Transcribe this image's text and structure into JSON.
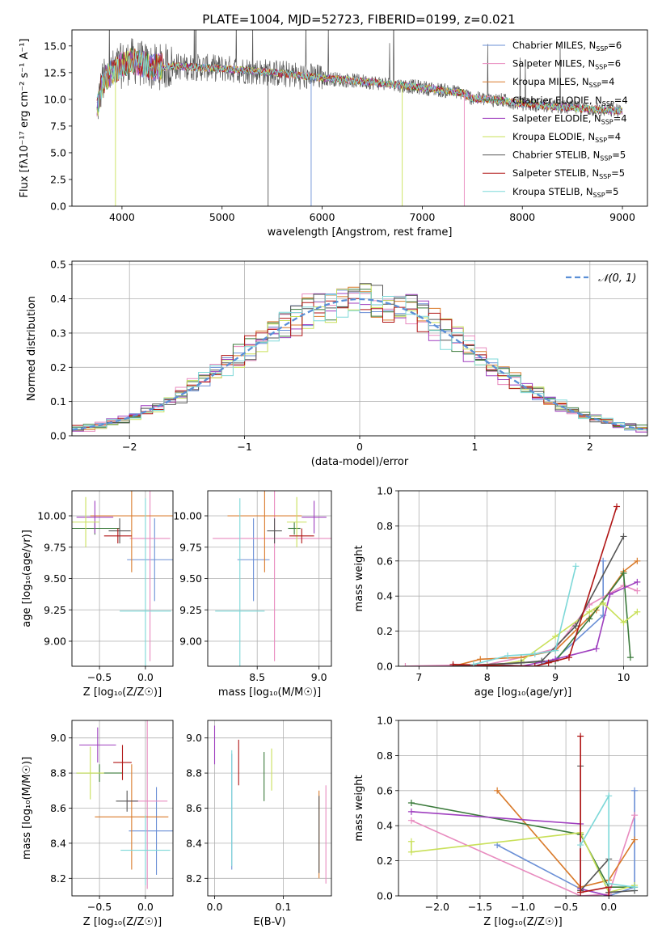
{
  "figure": {
    "title": "PLATE=1004, MJD=52723, FIBERID=0199, z=0.021"
  },
  "colors": {
    "series": [
      "#6a8fd6",
      "#e88bbf",
      "#d97a2a",
      "#3a7a3a",
      "#9f3fbf",
      "#c9e05a",
      "#555555",
      "#b01515",
      "#7dd8d8"
    ]
  },
  "chart_data": [
    {
      "id": "spectrum",
      "type": "line",
      "title": "PLATE=1004, MJD=52723, FIBERID=0199, z=0.021",
      "xlabel": "wavelength [Angstrom, rest frame]",
      "ylabel": "Flux [fλ10⁻¹⁷ erg cm⁻² s⁻¹ A⁻¹]",
      "xlim": [
        3500,
        9250
      ],
      "ylim": [
        0,
        16.5
      ],
      "xticks": [
        4000,
        5000,
        6000,
        7000,
        8000,
        9000
      ],
      "yticks": [
        0.0,
        2.5,
        5.0,
        7.5,
        10.0,
        12.5,
        15.0
      ],
      "grid": false,
      "legend": "top-right",
      "legend_entries": [
        "Chabrier MILES, N_SSP=6",
        "Salpeter MILES, N_SSP=6",
        "Kroupa MILES, N_SSP=4",
        "Chabrier ELODIE, N_SSP=4",
        "Salpeter ELODIE, N_SSP=4",
        "Kroupa ELODIE, N_SSP=4",
        "Chabrier STELIB, N_SSP=5",
        "Salpeter STELIB, N_SSP=5",
        "Kroupa STELIB, N_SSP=5"
      ],
      "continuum": {
        "x": [
          3750,
          3800,
          3900,
          4000,
          4100,
          4300,
          4500,
          5000,
          5500,
          6000,
          6500,
          7000,
          7400,
          7500,
          7800,
          8000,
          8500,
          9000
        ],
        "y": [
          9.0,
          11.5,
          12.5,
          13.2,
          13.6,
          13.0,
          13.1,
          12.9,
          12.5,
          12.0,
          11.6,
          11.1,
          10.6,
          10.1,
          9.9,
          9.6,
          9.2,
          8.9
        ]
      },
      "dips": [
        {
          "x": 3935,
          "y": 0.0
        },
        {
          "x": 5460,
          "y": 0.0
        },
        {
          "x": 5890,
          "y": 0.0
        },
        {
          "x": 6800,
          "y": 0.0
        },
        {
          "x": 7420,
          "y": 0.0
        }
      ]
    },
    {
      "id": "residuals",
      "type": "histogram",
      "xlabel": "(data-model)/error",
      "ylabel": "Normed distribution",
      "xlim": [
        -2.5,
        2.5
      ],
      "ylim": [
        0,
        0.51
      ],
      "xticks": [
        -2,
        -1,
        0,
        1,
        2
      ],
      "yticks": [
        0.0,
        0.1,
        0.2,
        0.3,
        0.4,
        0.5
      ],
      "grid": true,
      "legend": "top-right",
      "reference_label": "𝒩(0, 1)",
      "bin_width": 0.1
    },
    {
      "id": "age_vs_Z",
      "type": "scatter",
      "xlabel": "Z [log₁₀(Z/Z☉)]",
      "ylabel": "age  [log₁₀(age/yr)]",
      "xlim": [
        -0.8,
        0.3
      ],
      "ylim": [
        8.8,
        10.2
      ],
      "xticks": [
        -0.5,
        0.0
      ],
      "yticks": [
        9.0,
        9.25,
        9.5,
        9.75,
        10.0
      ],
      "grid": true,
      "points": [
        {
          "x": 0.1,
          "y": 9.65,
          "xerr": 0.3,
          "yerr": 0.33,
          "color": 0
        },
        {
          "x": 0.05,
          "y": 9.82,
          "xerr": 0.22,
          "yerr": 0.98,
          "color": 1
        },
        {
          "x": -0.15,
          "y": 10.0,
          "xerr": 0.45,
          "yerr": 0.45,
          "color": 2
        },
        {
          "x": -0.55,
          "y": 9.9,
          "xerr": 0.27,
          "yerr": 0.05,
          "color": 3
        },
        {
          "x": -0.55,
          "y": 9.99,
          "xerr": 0.2,
          "yerr": 0.13,
          "color": 4
        },
        {
          "x": -0.65,
          "y": 9.95,
          "xerr": 0.15,
          "yerr": 0.2,
          "color": 5
        },
        {
          "x": -0.28,
          "y": 9.88,
          "xerr": 0.12,
          "yerr": 0.1,
          "color": 6
        },
        {
          "x": -0.3,
          "y": 9.84,
          "xerr": 0.15,
          "yerr": 0.06,
          "color": 7
        },
        {
          "x": 0.0,
          "y": 9.24,
          "xerr": 0.28,
          "yerr": 0.9,
          "color": 8
        }
      ]
    },
    {
      "id": "age_vs_mass",
      "type": "scatter",
      "xlabel": "mass [log₁₀(M/M☉)]",
      "ylabel": "",
      "xlim": [
        8.1,
        9.1
      ],
      "ylim": [
        8.8,
        10.2
      ],
      "xticks": [
        8.5,
        9.0
      ],
      "yticks": [
        9.0,
        9.25,
        9.5,
        9.75,
        10.0
      ],
      "grid": true,
      "points": [
        {
          "x": 8.47,
          "y": 9.65,
          "xerr": 0.13,
          "yerr": 0.33,
          "color": 0
        },
        {
          "x": 8.64,
          "y": 9.82,
          "xerr": 0.5,
          "yerr": 0.98,
          "color": 1
        },
        {
          "x": 8.56,
          "y": 10.0,
          "xerr": 0.3,
          "yerr": 0.45,
          "color": 2
        },
        {
          "x": 8.8,
          "y": 9.9,
          "xerr": 0.05,
          "yerr": 0.05,
          "color": 3
        },
        {
          "x": 8.96,
          "y": 9.99,
          "xerr": 0.1,
          "yerr": 0.13,
          "color": 4
        },
        {
          "x": 8.82,
          "y": 9.95,
          "xerr": 0.08,
          "yerr": 0.2,
          "color": 5
        },
        {
          "x": 8.64,
          "y": 9.88,
          "xerr": 0.06,
          "yerr": 0.1,
          "color": 6
        },
        {
          "x": 8.86,
          "y": 9.84,
          "xerr": 0.1,
          "yerr": 0.06,
          "color": 7
        },
        {
          "x": 8.36,
          "y": 9.24,
          "xerr": 0.2,
          "yerr": 0.9,
          "color": 8
        }
      ]
    },
    {
      "id": "weight_vs_age",
      "type": "line",
      "xlabel": "age  [log₁₀(age/yr)]",
      "ylabel": "mass weight",
      "xlim": [
        6.7,
        10.35
      ],
      "ylim": [
        0,
        1.0
      ],
      "xticks": [
        7,
        8,
        9,
        10
      ],
      "yticks": [
        0.0,
        0.2,
        0.4,
        0.6,
        0.8,
        1.0
      ],
      "grid": true,
      "series": [
        {
          "color": 0,
          "x": [
            7.5,
            8.0,
            8.7,
            9.0,
            9.7,
            9.7
          ],
          "y": [
            0.0,
            0.01,
            0.0,
            0.04,
            0.29,
            0.6
          ]
        },
        {
          "color": 1,
          "x": [
            6.8,
            8.0,
            8.5,
            9.0,
            9.5,
            10.0,
            10.2
          ],
          "y": [
            0.0,
            0.01,
            0.05,
            0.1,
            0.35,
            0.46,
            0.43
          ]
        },
        {
          "color": 2,
          "x": [
            7.5,
            7.9,
            8.5,
            9.0,
            9.6,
            10.0,
            10.2
          ],
          "y": [
            0.0,
            0.04,
            0.05,
            0.09,
            0.32,
            0.54,
            0.6
          ]
        },
        {
          "color": 3,
          "x": [
            7.5,
            8.5,
            9.0,
            9.5,
            10.0,
            10.1
          ],
          "y": [
            0.0,
            0.02,
            0.03,
            0.27,
            0.53,
            0.05
          ]
        },
        {
          "color": 4,
          "x": [
            7.5,
            8.5,
            9.0,
            9.6,
            9.8,
            10.2
          ],
          "y": [
            0.0,
            0.0,
            0.04,
            0.1,
            0.41,
            0.48
          ]
        },
        {
          "color": 5,
          "x": [
            8.0,
            8.5,
            9.0,
            9.5,
            9.7,
            10.0,
            10.2
          ],
          "y": [
            0.0,
            0.03,
            0.17,
            0.31,
            0.36,
            0.25,
            0.31
          ]
        },
        {
          "color": 6,
          "x": [
            7.5,
            8.5,
            8.8,
            9.3,
            10.0
          ],
          "y": [
            0.0,
            0.02,
            0.03,
            0.23,
            0.74
          ]
        },
        {
          "color": 7,
          "x": [
            7.5,
            8.7,
            8.9,
            9.2,
            9.9
          ],
          "y": [
            0.01,
            0.0,
            0.02,
            0.05,
            0.91
          ]
        },
        {
          "color": 8,
          "x": [
            7.8,
            8.3,
            8.7,
            9.0,
            9.3
          ],
          "y": [
            0.01,
            0.06,
            0.07,
            0.09,
            0.57
          ]
        }
      ]
    },
    {
      "id": "mass_vs_Z",
      "type": "scatter",
      "xlabel": "Z [log₁₀(Z/Z☉)]",
      "ylabel": "mass [log₁₀(M/M☉)]",
      "xlim": [
        -0.8,
        0.3
      ],
      "ylim": [
        8.1,
        9.1
      ],
      "xticks": [
        -0.5,
        0.0
      ],
      "yticks": [
        8.2,
        8.4,
        8.6,
        8.8,
        9.0
      ],
      "grid": true,
      "points": [
        {
          "x": 0.12,
          "y": 8.47,
          "xerr": 0.3,
          "yerr": 0.25,
          "color": 0
        },
        {
          "x": 0.02,
          "y": 8.64,
          "xerr": 0.22,
          "yerr": 0.5,
          "color": 1
        },
        {
          "x": -0.15,
          "y": 8.55,
          "xerr": 0.4,
          "yerr": 0.3,
          "color": 2
        },
        {
          "x": -0.5,
          "y": 8.8,
          "xerr": 0.25,
          "yerr": 0.05,
          "color": 3
        },
        {
          "x": -0.52,
          "y": 8.96,
          "xerr": 0.2,
          "yerr": 0.1,
          "color": 4
        },
        {
          "x": -0.6,
          "y": 8.8,
          "xerr": 0.15,
          "yerr": 0.15,
          "color": 5
        },
        {
          "x": -0.2,
          "y": 8.64,
          "xerr": 0.12,
          "yerr": 0.06,
          "color": 6
        },
        {
          "x": -0.25,
          "y": 8.86,
          "xerr": 0.1,
          "yerr": 0.1,
          "color": 7
        },
        {
          "x": 0.0,
          "y": 8.36,
          "xerr": 0.27,
          "yerr": 0.2,
          "color": 8
        }
      ]
    },
    {
      "id": "mass_vs_ebv",
      "type": "scatter",
      "xlabel": "E(B-V)",
      "ylabel": "",
      "xlim": [
        -0.01,
        0.17
      ],
      "ylim": [
        8.1,
        9.1
      ],
      "xticks": [
        0.0,
        0.1
      ],
      "yticks": [
        8.2,
        8.4,
        8.6,
        8.8,
        9.0
      ],
      "grid": true,
      "points": [
        {
          "x": 0.025,
          "y": 8.58,
          "xerr": 0.0,
          "yerr": 0.33,
          "color": 0
        },
        {
          "x": 0.162,
          "y": 8.45,
          "xerr": 0.0,
          "yerr": 0.28,
          "color": 1
        },
        {
          "x": 0.152,
          "y": 8.45,
          "xerr": 0.0,
          "yerr": 0.25,
          "color": 2
        },
        {
          "x": 0.072,
          "y": 8.78,
          "xerr": 0.0,
          "yerr": 0.14,
          "color": 3
        },
        {
          "x": 0.0,
          "y": 8.96,
          "xerr": 0.0,
          "yerr": 0.11,
          "color": 4
        },
        {
          "x": 0.083,
          "y": 8.82,
          "xerr": 0.0,
          "yerr": 0.12,
          "color": 5
        },
        {
          "x": 0.152,
          "y": 8.45,
          "xerr": 0.0,
          "yerr": 0.22,
          "color": 6
        },
        {
          "x": 0.035,
          "y": 8.86,
          "xerr": 0.0,
          "yerr": 0.13,
          "color": 7
        },
        {
          "x": 0.025,
          "y": 8.6,
          "xerr": 0.0,
          "yerr": 0.33,
          "color": 8
        }
      ]
    },
    {
      "id": "weight_vs_Z",
      "type": "line",
      "xlabel": "Z [log₁₀(Z/Z☉)]",
      "ylabel": "mass weight",
      "xlim": [
        -2.45,
        0.45
      ],
      "ylim": [
        0,
        1.0
      ],
      "xticks": [
        -2.0,
        -1.5,
        -1.0,
        -0.5,
        0.0
      ],
      "yticks": [
        0.0,
        0.2,
        0.4,
        0.6,
        0.8,
        1.0
      ],
      "grid": true,
      "series": [
        {
          "color": 0,
          "x": [
            -1.3,
            -0.33,
            0.0,
            0.3,
            0.3
          ],
          "y": [
            0.29,
            0.04,
            0.0,
            0.05,
            0.6
          ]
        },
        {
          "color": 1,
          "x": [
            -2.3,
            -0.33,
            0.0,
            0.3
          ],
          "y": [
            0.43,
            0.0,
            0.01,
            0.46
          ]
        },
        {
          "color": 2,
          "x": [
            -1.3,
            -0.33,
            0.0,
            0.3
          ],
          "y": [
            0.6,
            0.05,
            0.09,
            0.32
          ]
        },
        {
          "color": 3,
          "x": [
            -2.3,
            -0.33,
            0.0,
            0.3
          ],
          "y": [
            0.53,
            0.35,
            0.05,
            0.05
          ]
        },
        {
          "color": 4,
          "x": [
            -2.3,
            -0.33,
            -0.33,
            0.0
          ],
          "y": [
            0.48,
            0.41,
            0.04,
            0.0
          ]
        },
        {
          "color": 5,
          "x": [
            -2.3,
            -2.3,
            -0.33,
            0.0,
            0.3
          ],
          "y": [
            0.31,
            0.25,
            0.36,
            0.02,
            0.06
          ]
        },
        {
          "color": 6,
          "x": [
            -0.33,
            -0.33,
            0.0,
            0.0,
            0.3
          ],
          "y": [
            0.74,
            0.03,
            0.21,
            0.02,
            0.03
          ]
        },
        {
          "color": 7,
          "x": [
            -0.33,
            -0.33,
            0.0,
            0.0
          ],
          "y": [
            0.91,
            0.02,
            0.05,
            0.0
          ]
        },
        {
          "color": 8,
          "x": [
            -0.33,
            0.0,
            0.0,
            0.3
          ],
          "y": [
            0.29,
            0.57,
            0.07,
            0.05
          ]
        }
      ]
    }
  ]
}
